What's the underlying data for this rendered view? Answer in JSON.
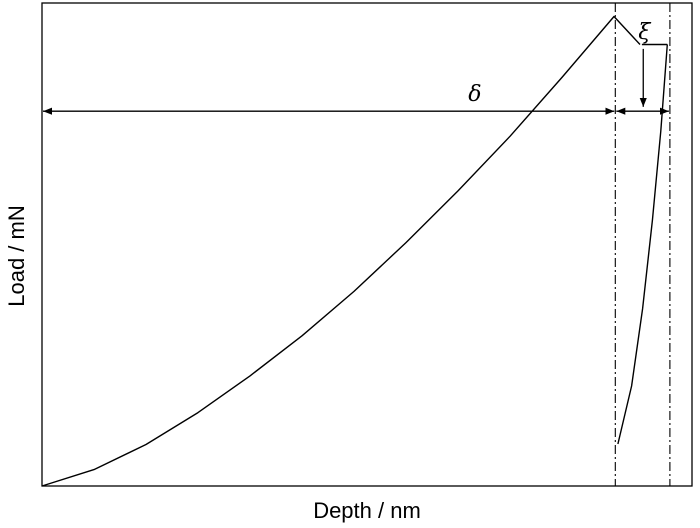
{
  "chart_data": {
    "type": "line",
    "xlabel": "Depth / nm",
    "ylabel": "Load / mN",
    "xlim": [
      0,
      100
    ],
    "ylim": [
      0,
      100
    ],
    "axes": {
      "tick_labels": "none",
      "grid": false,
      "frame": "box"
    },
    "series": [
      {
        "role": "loading",
        "x": [
          0,
          8,
          16,
          24,
          32,
          40,
          48,
          56,
          64,
          72,
          80,
          88,
          92
        ],
        "y": [
          0,
          3.4,
          8.6,
          15.2,
          22.8,
          31.1,
          40.3,
          50.4,
          61.1,
          72.4,
          84.6,
          97.2,
          91.4
        ]
      },
      {
        "role": "hold",
        "x": [
          92.3,
          96.2
        ],
        "y": [
          91.4,
          91.4
        ]
      },
      {
        "role": "unloading",
        "x": [
          96.2,
          95.2,
          93.9,
          92.4,
          90.7,
          88.6
        ],
        "y": [
          91.4,
          73.5,
          55.0,
          36.7,
          20.7,
          8.7
        ]
      }
    ],
    "reference_lines": [
      {
        "orientation": "vertical",
        "x": 88.2,
        "style": "dash-dot"
      },
      {
        "orientation": "vertical",
        "x": 96.6,
        "style": "dash-dot"
      }
    ],
    "annotations": [
      {
        "label": "δ",
        "type": "double-arrow",
        "x_from": 0,
        "x_to": 88.2,
        "y": 77.6
      },
      {
        "label": "",
        "type": "double-arrow",
        "x_from": 88.2,
        "x_to": 96.6,
        "y": 77.6
      },
      {
        "label": "ξ",
        "type": "arrow-down",
        "x": 92.5,
        "y_from": 90.5,
        "y_to": 78.5
      }
    ]
  }
}
